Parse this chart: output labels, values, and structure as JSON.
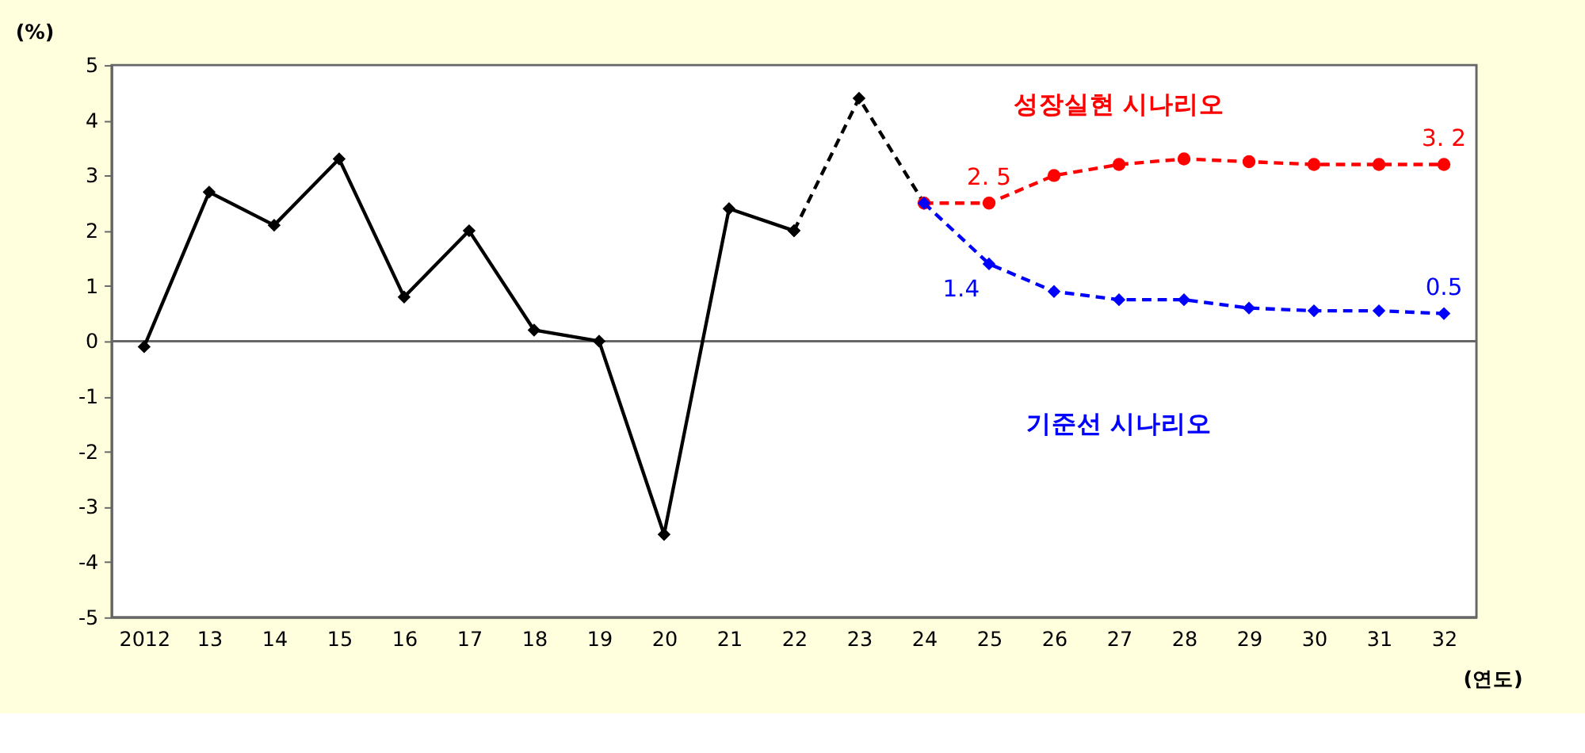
{
  "chart_data": {
    "type": "line",
    "ylabel": "(%)",
    "xlabel": "(연도)",
    "categories": [
      "2012",
      "13",
      "14",
      "15",
      "16",
      "17",
      "18",
      "19",
      "20",
      "21",
      "22",
      "23",
      "24",
      "25",
      "26",
      "27",
      "28",
      "29",
      "30",
      "31",
      "32"
    ],
    "series": [
      {
        "color": "#000000",
        "marker": "diamond",
        "line_style": "solid",
        "values": [
          -0.1,
          2.7,
          2.1,
          3.3,
          0.8,
          2.0,
          0.2,
          0.0,
          -3.5,
          2.4,
          2.0,
          null,
          null,
          null,
          null,
          null,
          null,
          null,
          null,
          null,
          null
        ]
      },
      {
        "color": "#000000",
        "marker": "diamond",
        "line_style": "dashed",
        "values": [
          null,
          null,
          null,
          null,
          null,
          null,
          null,
          null,
          null,
          null,
          2.0,
          4.4,
          2.5,
          null,
          null,
          null,
          null,
          null,
          null,
          null,
          null
        ]
      },
      {
        "name": "성장실현 시나리오",
        "color": "#ff0000",
        "marker": "circle",
        "line_style": "dashed",
        "values": [
          null,
          null,
          null,
          null,
          null,
          null,
          null,
          null,
          null,
          null,
          null,
          null,
          2.5,
          2.5,
          3.0,
          3.2,
          3.3,
          3.25,
          3.2,
          3.2,
          3.2
        ],
        "value_labels": [
          null,
          null,
          null,
          null,
          null,
          null,
          null,
          null,
          null,
          null,
          null,
          null,
          null,
          "2. 5",
          null,
          null,
          null,
          null,
          null,
          null,
          "3. 2"
        ]
      },
      {
        "name": "기준선 시나리오",
        "color": "#0000ff",
        "marker": "diamond",
        "line_style": "dashed",
        "values": [
          null,
          null,
          null,
          null,
          null,
          null,
          null,
          null,
          null,
          null,
          null,
          null,
          2.5,
          1.4,
          0.9,
          0.75,
          0.75,
          0.6,
          0.55,
          0.55,
          0.5
        ],
        "value_labels": [
          null,
          null,
          null,
          null,
          null,
          null,
          null,
          null,
          null,
          null,
          null,
          null,
          null,
          "1.4",
          null,
          null,
          null,
          null,
          null,
          null,
          "0.5"
        ]
      }
    ],
    "ylim": [
      -5,
      5
    ],
    "yticks": [
      -5,
      -4,
      -3,
      -2,
      -1,
      0,
      1,
      2,
      3,
      4,
      5
    ],
    "ref_lines": [
      {
        "axis": "y",
        "value": 0,
        "color": "#666666"
      }
    ],
    "grid": false
  }
}
